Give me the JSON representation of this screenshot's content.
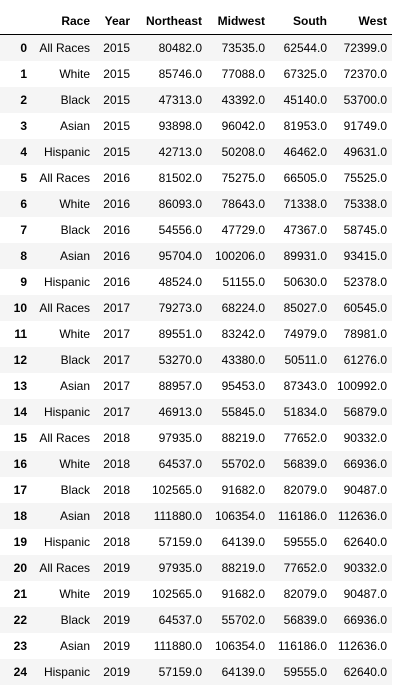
{
  "table": {
    "columns": [
      "",
      "Race",
      "Year",
      "Northeast",
      "Midwest",
      "South",
      "West"
    ],
    "rows": [
      [
        "0",
        "All Races",
        "2015",
        "80482.0",
        "73535.0",
        "62544.0",
        "72399.0"
      ],
      [
        "1",
        "White",
        "2015",
        "85746.0",
        "77088.0",
        "67325.0",
        "72370.0"
      ],
      [
        "2",
        "Black",
        "2015",
        "47313.0",
        "43392.0",
        "45140.0",
        "53700.0"
      ],
      [
        "3",
        "Asian",
        "2015",
        "93898.0",
        "96042.0",
        "81953.0",
        "91749.0"
      ],
      [
        "4",
        "Hispanic",
        "2015",
        "42713.0",
        "50208.0",
        "46462.0",
        "49631.0"
      ],
      [
        "5",
        "All Races",
        "2016",
        "81502.0",
        "75275.0",
        "66505.0",
        "75525.0"
      ],
      [
        "6",
        "White",
        "2016",
        "86093.0",
        "78643.0",
        "71338.0",
        "75338.0"
      ],
      [
        "7",
        "Black",
        "2016",
        "54556.0",
        "47729.0",
        "47367.0",
        "58745.0"
      ],
      [
        "8",
        "Asian",
        "2016",
        "95704.0",
        "100206.0",
        "89931.0",
        "93415.0"
      ],
      [
        "9",
        "Hispanic",
        "2016",
        "48524.0",
        "51155.0",
        "50630.0",
        "52378.0"
      ],
      [
        "10",
        "All Races",
        "2017",
        "79273.0",
        "68224.0",
        "85027.0",
        "60545.0"
      ],
      [
        "11",
        "White",
        "2017",
        "89551.0",
        "83242.0",
        "74979.0",
        "78981.0"
      ],
      [
        "12",
        "Black",
        "2017",
        "53270.0",
        "43380.0",
        "50511.0",
        "61276.0"
      ],
      [
        "13",
        "Asian",
        "2017",
        "88957.0",
        "95453.0",
        "87343.0",
        "100992.0"
      ],
      [
        "14",
        "Hispanic",
        "2017",
        "46913.0",
        "55845.0",
        "51834.0",
        "56879.0"
      ],
      [
        "15",
        "All Races",
        "2018",
        "97935.0",
        "88219.0",
        "77652.0",
        "90332.0"
      ],
      [
        "16",
        "White",
        "2018",
        "64537.0",
        "55702.0",
        "56839.0",
        "66936.0"
      ],
      [
        "17",
        "Black",
        "2018",
        "102565.0",
        "91682.0",
        "82079.0",
        "90487.0"
      ],
      [
        "18",
        "Asian",
        "2018",
        "111880.0",
        "106354.0",
        "116186.0",
        "112636.0"
      ],
      [
        "19",
        "Hispanic",
        "2018",
        "57159.0",
        "64139.0",
        "59555.0",
        "62640.0"
      ],
      [
        "20",
        "All Races",
        "2019",
        "97935.0",
        "88219.0",
        "77652.0",
        "90332.0"
      ],
      [
        "21",
        "White",
        "2019",
        "102565.0",
        "91682.0",
        "82079.0",
        "90487.0"
      ],
      [
        "22",
        "Black",
        "2019",
        "64537.0",
        "55702.0",
        "56839.0",
        "66936.0"
      ],
      [
        "23",
        "Asian",
        "2019",
        "111880.0",
        "106354.0",
        "116186.0",
        "112636.0"
      ],
      [
        "24",
        "Hispanic",
        "2019",
        "57159.0",
        "64139.0",
        "59555.0",
        "62640.0"
      ]
    ]
  },
  "colors": {
    "stripe": "#f5f5f5",
    "background": "#ffffff",
    "header_rule": "#000000"
  }
}
